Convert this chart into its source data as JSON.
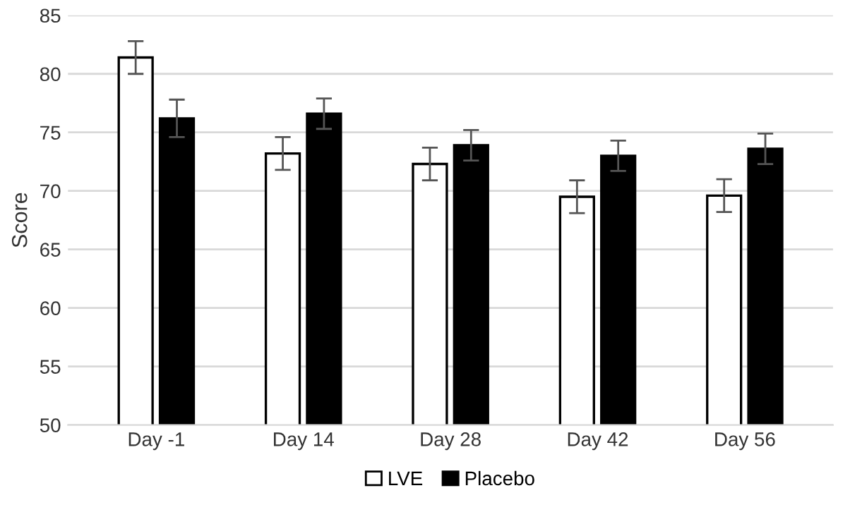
{
  "chart_data": {
    "type": "bar",
    "ylabel": "Score",
    "categories": [
      "Day -1",
      "Day 14",
      "Day 28",
      "Day 42",
      "Day 56"
    ],
    "series": [
      {
        "name": "LVE",
        "color": "#ffffff",
        "values": [
          81.4,
          73.2,
          72.3,
          69.5,
          69.6
        ],
        "errors": [
          1.4,
          1.4,
          1.4,
          1.4,
          1.4
        ]
      },
      {
        "name": "Placebo",
        "color": "#000000",
        "values": [
          76.2,
          76.6,
          73.9,
          73.0,
          73.6
        ],
        "errors": [
          1.6,
          1.3,
          1.3,
          1.3,
          1.3
        ]
      }
    ],
    "ylim": [
      50,
      85
    ],
    "yticks": [
      50,
      55,
      60,
      65,
      70,
      75,
      80,
      85
    ],
    "grid": "y",
    "legend": "bottom"
  }
}
